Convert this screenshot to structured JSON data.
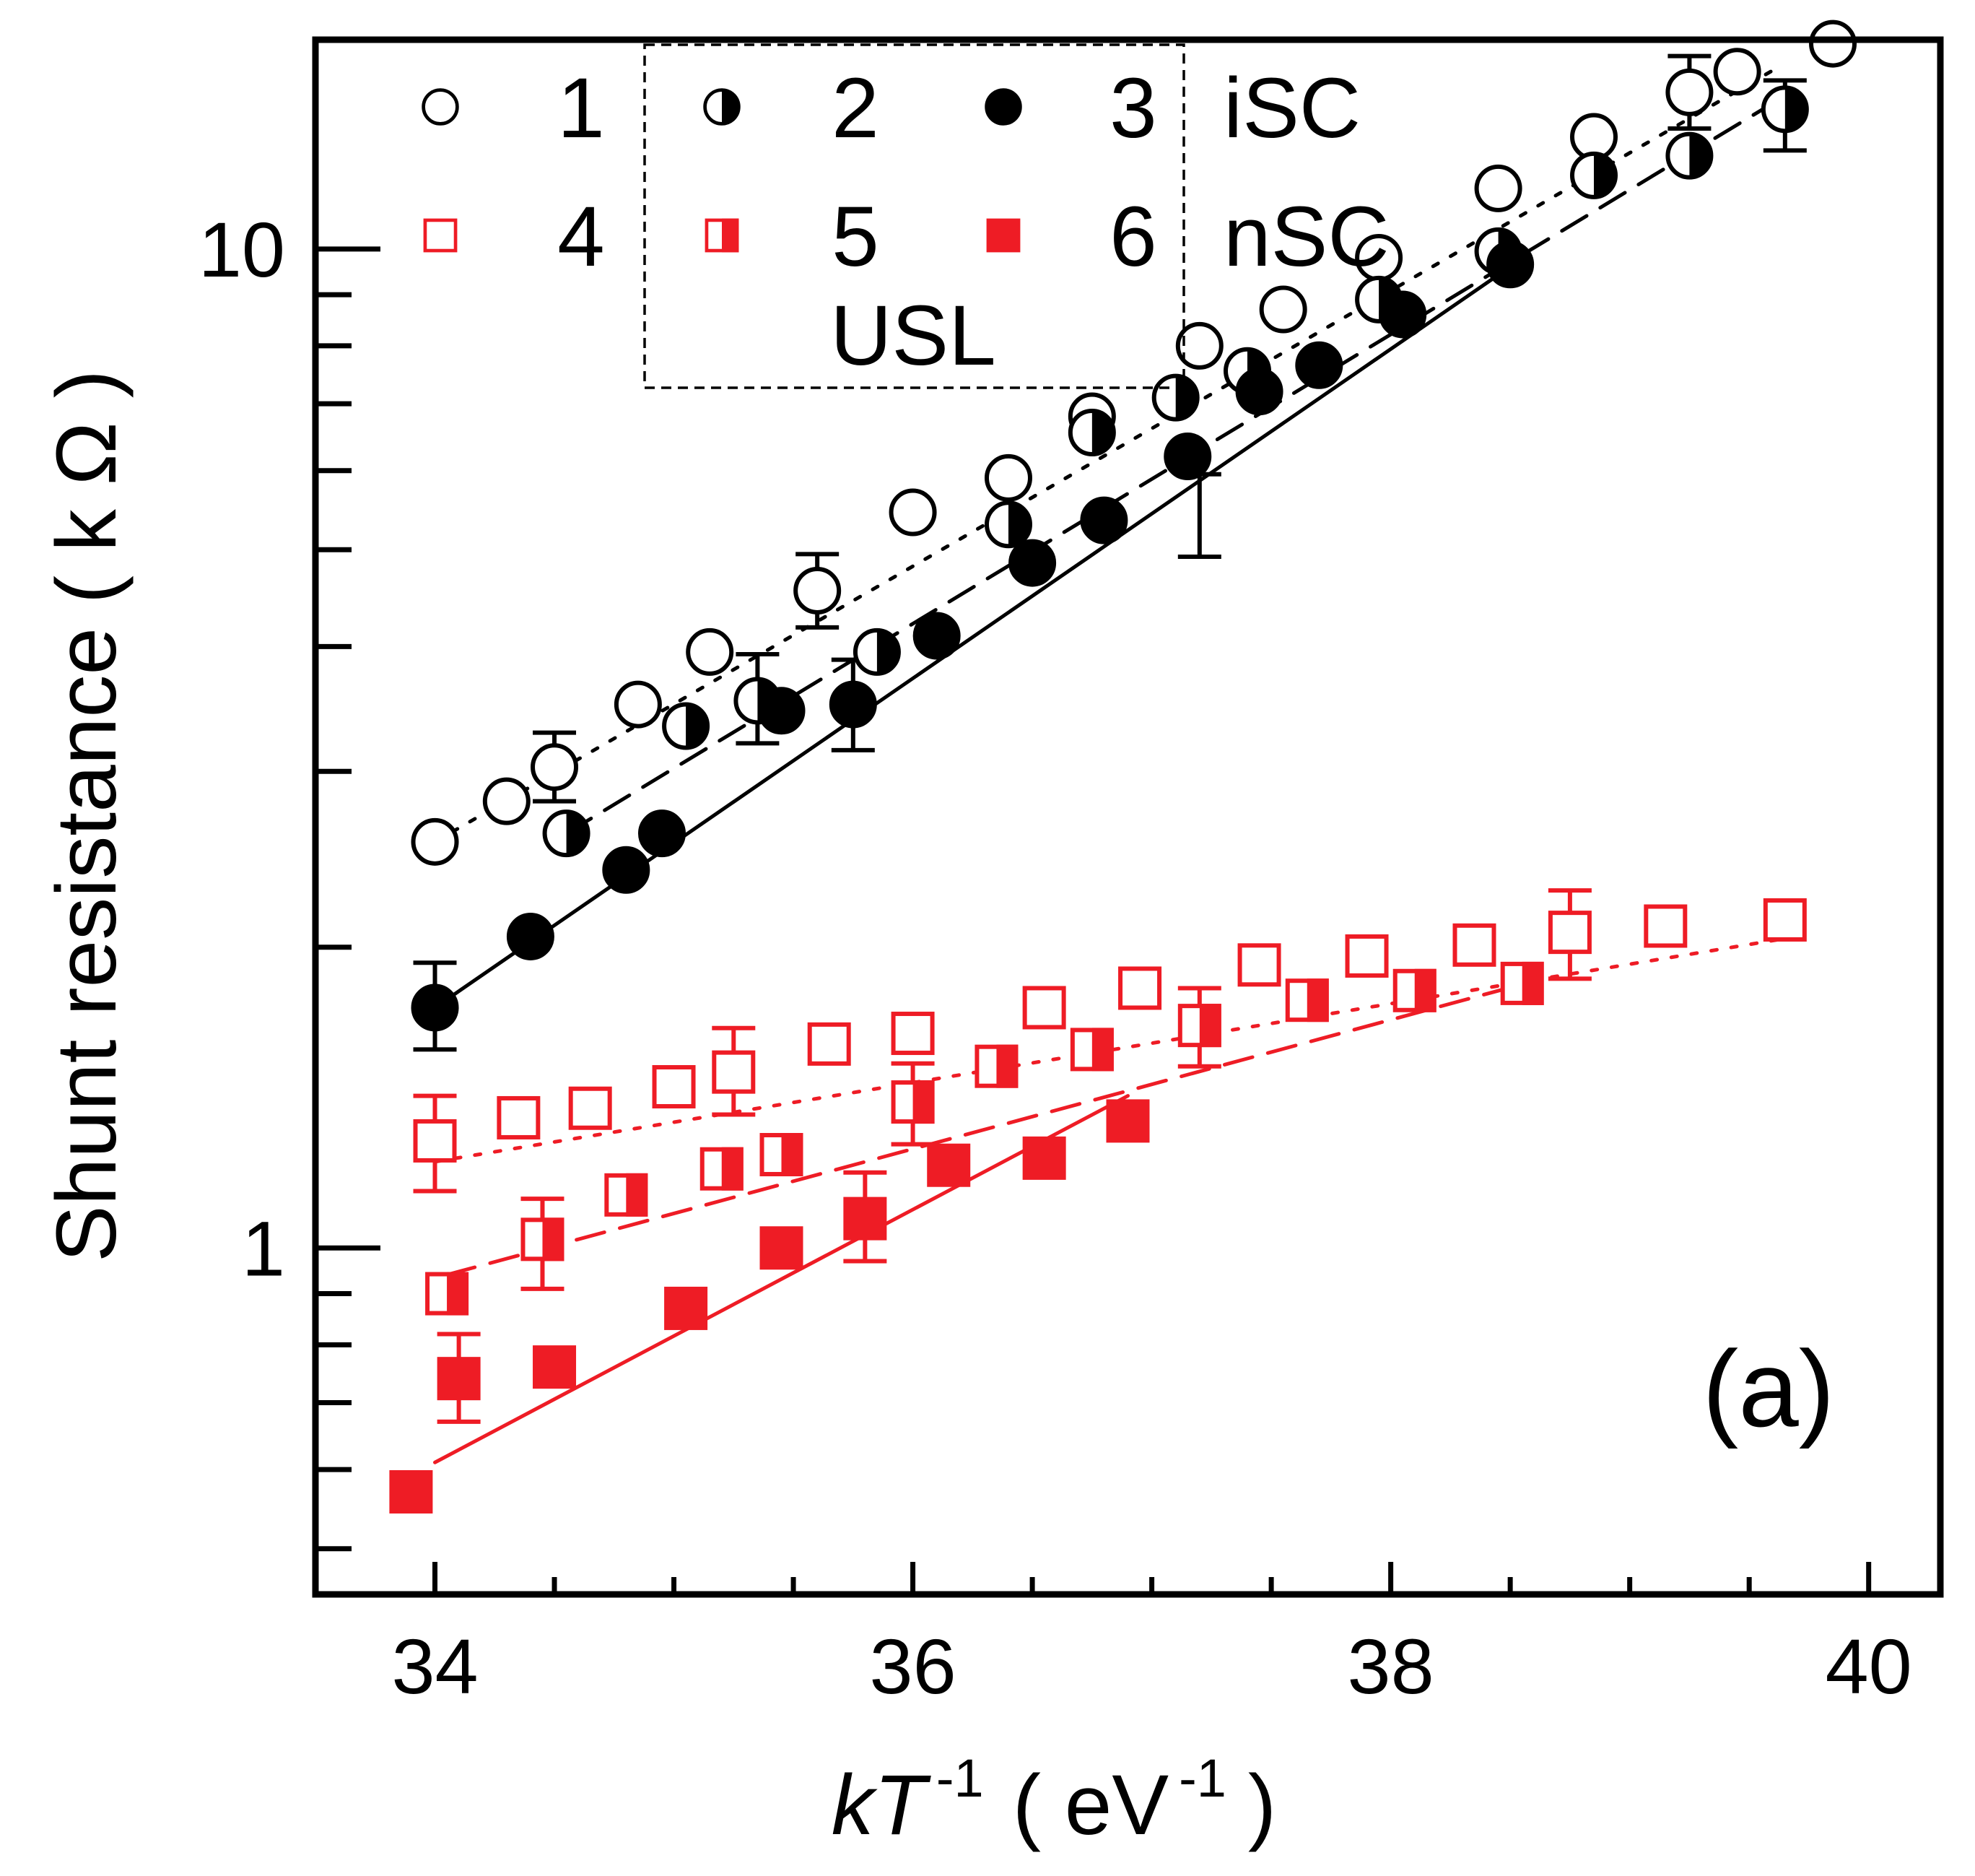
{
  "chart_data": {
    "type": "scatter",
    "panel_label": "(a)",
    "xlabel": {
      "italic": "kT",
      "sup": "-1",
      "unit": "( eV",
      "unit_sup": "-1",
      "close": ")"
    },
    "ylabel": "Shunt resistance ( k Ω )",
    "xlim": [
      33.5,
      40.3
    ],
    "ylim": [
      0.45,
      16.2
    ],
    "yscale": "log",
    "x_ticks": [
      34,
      36,
      38,
      40
    ],
    "x_tick_labels": [
      "34",
      "36",
      "38",
      "40"
    ],
    "y_tick_labels": [
      {
        "value": 1,
        "label": "1"
      },
      {
        "value": 10,
        "label": "10"
      }
    ],
    "legend": {
      "placement": "top",
      "rows": [
        {
          "group": "iSC",
          "labels": [
            "1",
            "2",
            "3"
          ]
        },
        {
          "group": "nSC",
          "labels": [
            "4",
            "5",
            "6"
          ]
        }
      ],
      "box_label": "USL"
    },
    "colors": {
      "iSC": "#000000",
      "nSC": "#ee1c25"
    },
    "series": [
      {
        "name": "1",
        "marker": "open-circle",
        "color": "#000000",
        "fit": "dotted",
        "x": [
          34.0,
          34.3,
          34.5,
          34.85,
          35.15,
          35.6,
          36.0,
          36.4,
          36.75,
          37.2,
          37.55,
          37.95,
          38.45,
          38.85,
          39.25,
          39.45,
          39.85
        ],
        "y": [
          2.55,
          2.8,
          3.03,
          3.5,
          3.95,
          4.55,
          5.45,
          5.9,
          6.8,
          8.0,
          8.7,
          9.8,
          11.5,
          12.95,
          14.35,
          15.05,
          16.05
        ],
        "errorbars": [
          {
            "x": 34.5,
            "low": 2.8,
            "high": 3.28
          },
          {
            "x": 35.6,
            "low": 4.18,
            "high": 4.95
          },
          {
            "x": 39.25,
            "low": 13.2,
            "high": 15.6
          }
        ]
      },
      {
        "name": "2",
        "marker": "half-filled-circle",
        "color": "#000000",
        "fit": "dashed",
        "x": [
          34.55,
          35.05,
          35.35,
          35.85,
          36.4,
          36.75,
          37.1,
          37.4,
          37.95,
          38.45,
          38.85,
          39.25,
          39.65
        ],
        "y": [
          2.6,
          3.33,
          3.53,
          3.95,
          5.3,
          6.55,
          7.1,
          7.55,
          8.9,
          9.95,
          11.85,
          12.4,
          13.8
        ],
        "errorbars": [
          {
            "x": 35.35,
            "low": 3.2,
            "high": 3.93
          },
          {
            "x": 39.65,
            "low": 12.55,
            "high": 14.75
          }
        ]
      },
      {
        "name": "3",
        "marker": "filled-circle",
        "color": "#000000",
        "fit": "solid",
        "x": [
          34.0,
          34.4,
          34.8,
          34.95,
          35.45,
          35.75,
          36.1,
          36.5,
          36.8,
          37.15,
          37.45,
          37.7,
          38.05,
          38.5
        ],
        "y": [
          1.74,
          2.05,
          2.39,
          2.6,
          3.45,
          3.5,
          4.1,
          4.85,
          5.35,
          6.2,
          7.2,
          7.65,
          8.6,
          9.65
        ],
        "errorbars": [
          {
            "x": 34.0,
            "low": 1.58,
            "high": 1.93
          },
          {
            "x": 35.75,
            "low": 3.15,
            "high": 3.88
          },
          {
            "x": 37.2,
            "low": 4.92,
            "high": 5.95
          }
        ]
      },
      {
        "name": "4",
        "marker": "open-square",
        "color": "#ee1c25",
        "fit": "dotted",
        "x": [
          34.0,
          34.35,
          34.65,
          35.0,
          35.25,
          35.65,
          36.0,
          36.55,
          36.95,
          37.45,
          37.9,
          38.35,
          38.75,
          39.15,
          39.65
        ],
        "y": [
          1.28,
          1.35,
          1.38,
          1.45,
          1.5,
          1.6,
          1.64,
          1.74,
          1.82,
          1.92,
          1.96,
          2.01,
          2.07,
          2.1,
          2.13
        ],
        "errorbars": [
          {
            "x": 34.0,
            "low": 1.14,
            "high": 1.42
          },
          {
            "x": 35.25,
            "low": 1.36,
            "high": 1.66
          },
          {
            "x": 38.75,
            "low": 1.86,
            "high": 2.28
          }
        ]
      },
      {
        "name": "5",
        "marker": "half-filled-square",
        "color": "#ee1c25",
        "fit": "dashed",
        "x": [
          34.05,
          34.45,
          34.8,
          35.2,
          35.45,
          36.0,
          36.35,
          36.75,
          37.2,
          37.65,
          38.1,
          38.55
        ],
        "y": [
          0.9,
          1.02,
          1.13,
          1.2,
          1.24,
          1.4,
          1.52,
          1.58,
          1.67,
          1.77,
          1.81,
          1.84
        ],
        "errorbars": [
          {
            "x": 34.45,
            "low": 0.91,
            "high": 1.12
          },
          {
            "x": 36.0,
            "low": 1.27,
            "high": 1.53
          },
          {
            "x": 37.2,
            "low": 1.52,
            "high": 1.82
          }
        ]
      },
      {
        "name": "6",
        "marker": "filled-square",
        "color": "#ee1c25",
        "fit": "solid",
        "x": [
          33.9,
          34.1,
          34.5,
          35.05,
          35.45,
          35.8,
          36.15,
          36.55,
          36.9
        ],
        "y": [
          0.57,
          0.74,
          0.76,
          0.87,
          1.0,
          1.07,
          1.21,
          1.23,
          1.34
        ],
        "errorbars": [
          {
            "x": 34.1,
            "low": 0.67,
            "high": 0.82
          },
          {
            "x": 35.8,
            "low": 0.97,
            "high": 1.19
          }
        ]
      }
    ],
    "fits": [
      {
        "series": "1",
        "style": "dotted",
        "x": [
          34.0,
          39.6
        ],
        "y": [
          2.55,
          15.1
        ]
      },
      {
        "series": "2",
        "style": "dashed",
        "x": [
          34.55,
          39.6
        ],
        "y": [
          2.6,
          14.0
        ]
      },
      {
        "series": "3",
        "style": "solid",
        "x": [
          34.0,
          38.5
        ],
        "y": [
          1.74,
          9.6
        ]
      },
      {
        "series": "4",
        "style": "dotted",
        "x": [
          34.0,
          39.7
        ],
        "y": [
          1.22,
          2.05
        ]
      },
      {
        "series": "5",
        "style": "dashed",
        "x": [
          34.05,
          38.6
        ],
        "y": [
          0.94,
          1.85
        ]
      },
      {
        "series": "6",
        "style": "solid",
        "x": [
          34.0,
          36.9
        ],
        "y": [
          0.61,
          1.42
        ]
      }
    ]
  }
}
